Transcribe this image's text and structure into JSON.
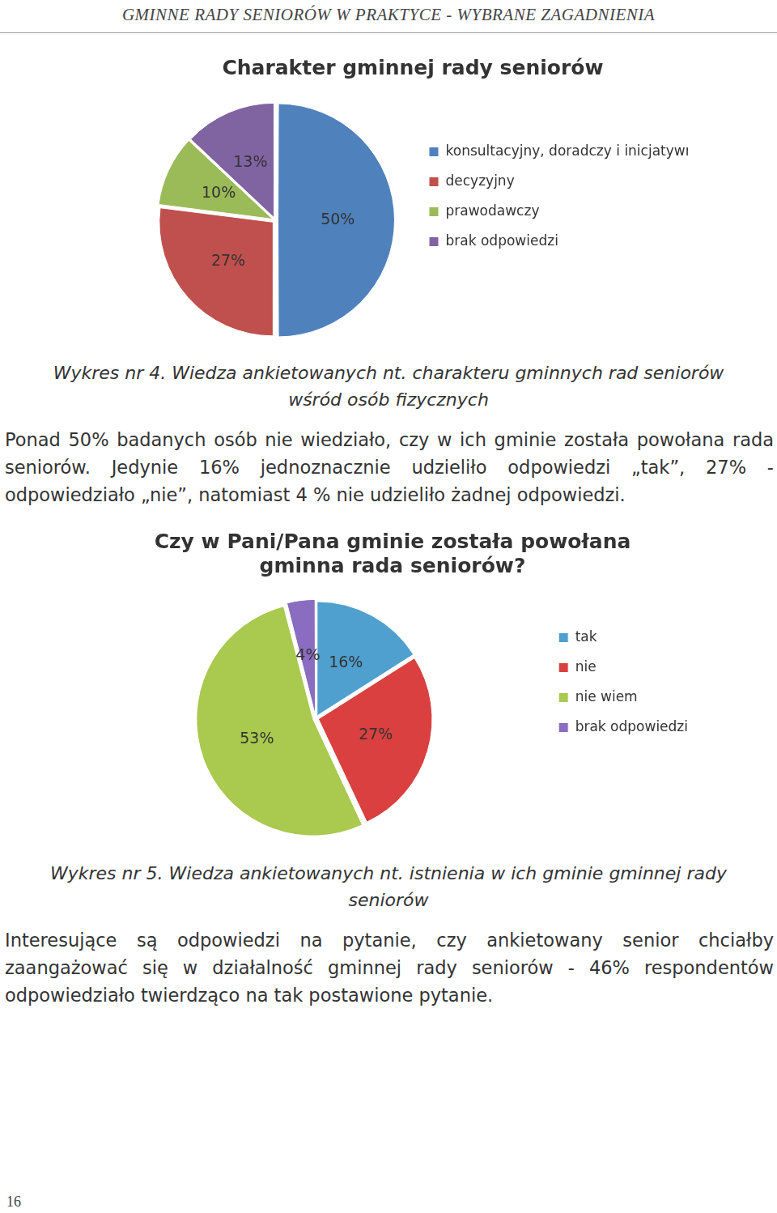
{
  "header": "GMINNE RADY SENIORÓW W PRAKTYCE - WYBRANE ZAGADNIENIA",
  "chart_data": [
    {
      "type": "pie",
      "title": "Charakter gminnej rady seniorów",
      "categories": [
        "konsultacyjny, doradczy i inicjatywny",
        "decyzyjny",
        "prawodawczy",
        "brak odpowiedzi"
      ],
      "values": [
        50,
        27,
        10,
        13
      ],
      "value_labels": [
        "50%",
        "27%",
        "10%",
        "13%"
      ],
      "colors": [
        "#4f81bd",
        "#c0504d",
        "#9bbb59",
        "#8064a2"
      ],
      "data_labels": true,
      "legend": "right"
    },
    {
      "type": "pie",
      "title": [
        "Czy w Pani/Pana gminie została powołana",
        "gminna rada seniorów?"
      ],
      "categories": [
        "tak",
        "nie",
        "nie wiem",
        "brak odpowiedzi"
      ],
      "values": [
        16,
        27,
        53,
        4
      ],
      "value_labels": [
        "16%",
        "27%",
        "53%",
        "4%"
      ],
      "colors": [
        "#4f9fcf",
        "#d9403f",
        "#a9c94f",
        "#8a6cc0"
      ],
      "data_labels": true,
      "legend": "right"
    }
  ],
  "captions": [
    "Wykres nr 4. Wiedza ankietowanych nt. charakteru gminnych rad seniorów wśród osób fizycznych",
    "Wykres nr 5. Wiedza ankietowanych nt. istnienia w ich gminie gminnej rady seniorów"
  ],
  "paragraphs": [
    "Ponad 50% badanych osób nie wiedziało, czy w ich gminie została powołana rada seniorów. Jedynie 16% jednoznacznie udzieliło odpowiedzi „tak”, 27% - odpowiedziało „nie”, natomiast 4 % nie udzieliło żadnej odpowiedzi.",
    "Interesujące są odpowiedzi na pytanie, czy ankietowany senior chciałby zaangażować się w działalność gminnej rady seniorów - 46% respondentów odpowiedziało twierdząco na tak postawione pytanie."
  ],
  "page_number": 16
}
